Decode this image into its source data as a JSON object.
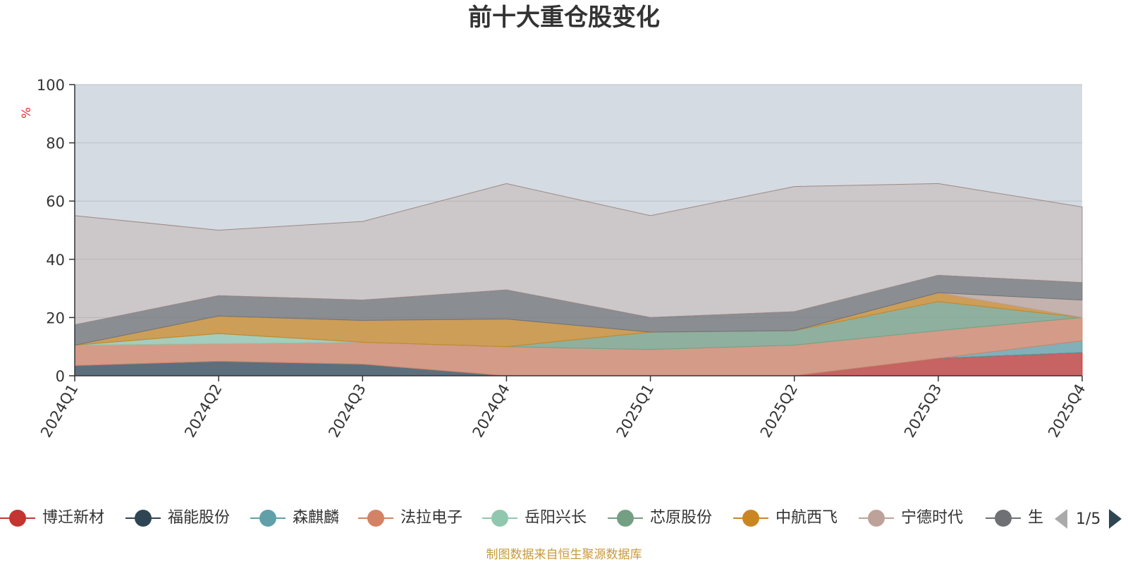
{
  "chart_data": {
    "type": "area",
    "title": "前十大重仓股变化",
    "ylabel": "%",
    "ylim": [
      0,
      100
    ],
    "yticks": [
      0,
      20,
      40,
      60,
      80,
      100
    ],
    "categories": [
      "2024Q1",
      "2024Q2",
      "2024Q3",
      "2024Q4",
      "2025Q1",
      "2025Q2",
      "2025Q3",
      "2025Q4"
    ],
    "grid": true,
    "legend_position": "bottom",
    "series": [
      {
        "name": "博迁新材",
        "color": "#c23531",
        "values": [
          0,
          0,
          0,
          0,
          0,
          0,
          6,
          8
        ]
      },
      {
        "name": "福能股份",
        "color": "#2f4554",
        "values": [
          3.5,
          5,
          4,
          0,
          0,
          0,
          0,
          0
        ]
      },
      {
        "name": "森麒麟",
        "color": "#61a0a8",
        "values": [
          0,
          0,
          0,
          0,
          0,
          0,
          0,
          4
        ]
      },
      {
        "name": "法拉电子",
        "color": "#d48265",
        "values": [
          7,
          6,
          7.5,
          10,
          9,
          10.5,
          9.5,
          8
        ]
      },
      {
        "name": "岳阳兴长",
        "color": "#91c7ae",
        "values": [
          0,
          3.5,
          0,
          0,
          0,
          0,
          0,
          0
        ]
      },
      {
        "name": "芯原股份",
        "color": "#749f83",
        "values": [
          0,
          0,
          0,
          0,
          6,
          5,
          10,
          0
        ]
      },
      {
        "name": "中航西飞",
        "color": "#ca8622",
        "values": [
          0,
          6,
          7.5,
          9.5,
          0,
          0,
          3,
          0
        ]
      },
      {
        "name": "宁德时代",
        "color": "#bda29a",
        "values": [
          0,
          0,
          0,
          0,
          0,
          0,
          0,
          6
        ]
      },
      {
        "name": "生益科技",
        "color": "#6e7074",
        "values": [
          7,
          7,
          7,
          10,
          5,
          6.5,
          6,
          6
        ]
      }
    ],
    "stacked_total": [
      55,
      50,
      53,
      66,
      55,
      65,
      66,
      58
    ]
  },
  "legend": {
    "page": "1/5",
    "visible_items": [
      "博迁新材",
      "福能股份",
      "森麒麟",
      "法拉电子",
      "岳阳兴长",
      "芯原股份",
      "中航西飞",
      "宁德时代",
      "生益科技"
    ],
    "last_item_visible_text": "生"
  },
  "source_note": "制图数据来自恒生聚源数据库"
}
